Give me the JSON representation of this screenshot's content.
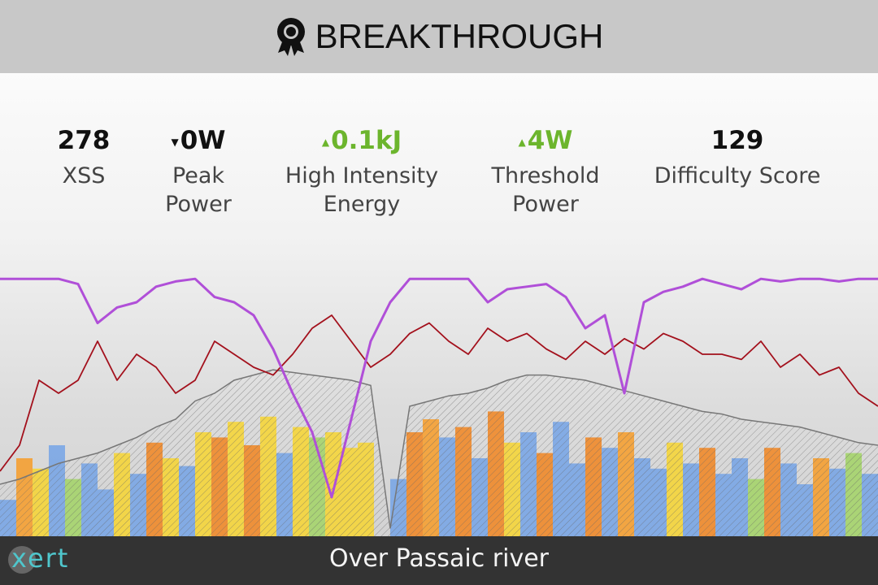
{
  "header": {
    "title": "BREAKTHROUGH"
  },
  "stats": [
    {
      "value": 278,
      "label": "XSS"
    },
    {
      "value": "0W",
      "label": "Peak Power",
      "trend": "down"
    },
    {
      "value": "0.1kJ",
      "label": "High Intensity Energy",
      "trend": "up"
    },
    {
      "value": "4W",
      "label": "Threshold Power",
      "trend": "up"
    },
    {
      "value": 129,
      "label": "Difficulty Score"
    }
  ],
  "chart_data": {
    "type": "line",
    "ylim": [
      0,
      100
    ],
    "series": [
      {
        "color": "#a3101c",
        "values": [
          25,
          35,
          60,
          55,
          60,
          75,
          60,
          70,
          65,
          55,
          60,
          75,
          70,
          65,
          62,
          70,
          80,
          85,
          75,
          65,
          70,
          78,
          82,
          75,
          70,
          80,
          75,
          78,
          72,
          68,
          75,
          70,
          76,
          72,
          78,
          75,
          70,
          70,
          68,
          75,
          65,
          70,
          62,
          65,
          55,
          50
        ]
      },
      {
        "color": "#b04fd8",
        "values": [
          99,
          99,
          99,
          99,
          97,
          82,
          88,
          90,
          96,
          98,
          99,
          92,
          90,
          85,
          72,
          55,
          40,
          15,
          45,
          75,
          90,
          99,
          99,
          99,
          99,
          90,
          95,
          96,
          97,
          92,
          80,
          85,
          55,
          90,
          94,
          96,
          99,
          97,
          95,
          99,
          98,
          99,
          99,
          98,
          99,
          99
        ]
      }
    ],
    "elevation": {
      "color": "#777777",
      "values": [
        20,
        22,
        25,
        28,
        30,
        32,
        35,
        38,
        42,
        45,
        52,
        55,
        60,
        62,
        64,
        63,
        62,
        61,
        60,
        58,
        3,
        50,
        52,
        54,
        55,
        57,
        60,
        62,
        62,
        61,
        60,
        58,
        56,
        54,
        52,
        50,
        48,
        47,
        45,
        44,
        43,
        42,
        40,
        38,
        36,
        35
      ]
    },
    "bars": {
      "values": [
        14,
        30,
        26,
        35,
        22,
        28,
        18,
        32,
        24,
        36,
        30,
        27,
        40,
        38,
        44,
        35,
        46,
        32,
        42,
        38,
        40,
        34,
        36,
        0,
        22,
        40,
        45,
        38,
        42,
        30,
        48,
        36,
        40,
        32,
        44,
        28,
        38,
        34,
        40,
        30,
        26,
        36,
        28,
        34,
        24,
        30,
        22,
        34,
        28,
        20,
        30,
        26,
        32,
        24
      ],
      "colors": [
        "#7aa6e6",
        "#f5a032",
        "#f5d53a",
        "#7aa6e6",
        "#a5d46b",
        "#7aa6e6",
        "#7aa6e6",
        "#f5d53a",
        "#7aa6e6",
        "#f08a2a",
        "#f5d53a",
        "#7aa6e6",
        "#f5d53a",
        "#f08a2a",
        "#f5d53a",
        "#f08a2a",
        "#f5d53a",
        "#7aa6e6",
        "#f5d53a",
        "#a5d46b",
        "#f5d53a",
        "#f5d53a",
        "#f5d53a",
        "#7aa6e6",
        "#7aa6e6",
        "#f08a2a",
        "#f5a032",
        "#7aa6e6",
        "#f08a2a",
        "#7aa6e6",
        "#f08a2a",
        "#f5d53a",
        "#7aa6e6",
        "#f08a2a",
        "#7aa6e6",
        "#7aa6e6",
        "#f08a2a",
        "#7aa6e6",
        "#f5a032",
        "#7aa6e6",
        "#7aa6e6",
        "#f5d53a",
        "#7aa6e6",
        "#f08a2a",
        "#7aa6e6",
        "#7aa6e6",
        "#a5d46b",
        "#f08a2a",
        "#7aa6e6",
        "#7aa6e6",
        "#f5a032",
        "#7aa6e6",
        "#a5d46b",
        "#7aa6e6"
      ]
    }
  },
  "footer": {
    "logo": "xert",
    "title": "Over Passaic river"
  }
}
